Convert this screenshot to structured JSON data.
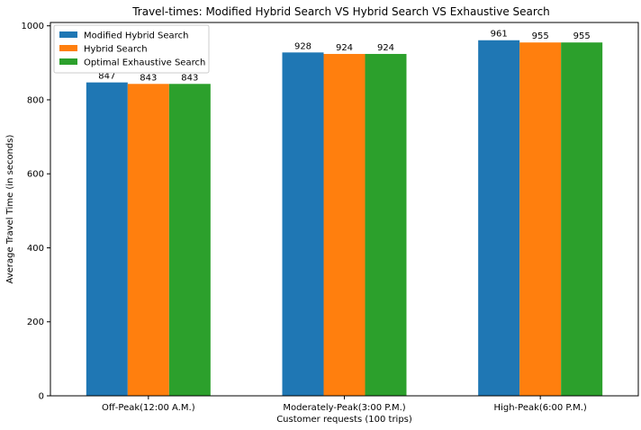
{
  "chart_data": {
    "type": "bar",
    "title": "Travel-times: Modified Hybrid Search VS Hybrid Search VS Exhaustive Search",
    "xlabel": "Customer requests (100 trips)",
    "ylabel": "Average Travel Time (in seconds)",
    "categories": [
      "Off-Peak(12:00 A.M.)",
      "Moderately-Peak(3:00 P.M.)",
      "High-Peak(6:00 P.M.)"
    ],
    "series": [
      {
        "name": "Modified Hybrid Search",
        "color": "#1f77b4",
        "values": [
          847,
          928,
          961
        ]
      },
      {
        "name": "Hybrid Search",
        "color": "#ff7f0e",
        "values": [
          843,
          924,
          955
        ]
      },
      {
        "name": "Optimal Exhaustive Search",
        "color": "#2ca02c",
        "values": [
          843,
          924,
          955
        ]
      }
    ],
    "ylim": [
      0,
      1009
    ],
    "yticks": [
      0,
      200,
      400,
      600,
      800,
      1000
    ],
    "legend": "top-left",
    "grid": false
  }
}
